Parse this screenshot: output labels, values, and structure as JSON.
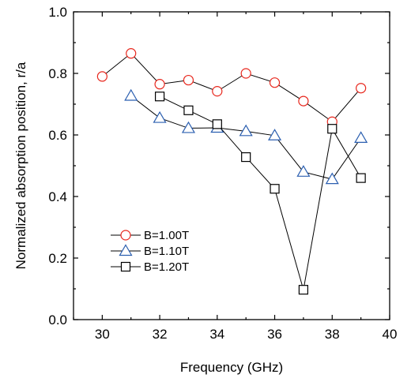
{
  "chart_data": {
    "type": "line",
    "title": "",
    "xlabel": "Frequency (GHz)",
    "ylabel": "Normalized absorption position, r/a",
    "xlim": [
      29,
      40
    ],
    "ylim": [
      0.0,
      1.0
    ],
    "xticks": [
      30,
      32,
      34,
      36,
      38,
      40
    ],
    "yticks": [
      0.0,
      0.2,
      0.4,
      0.6,
      0.8,
      1.0
    ],
    "ytick_labels": [
      "0.0",
      "0.2",
      "0.4",
      "0.6",
      "0.8",
      "1.0"
    ],
    "grid": false,
    "legend_position": "bottom-left",
    "series": [
      {
        "name": "B=1.00T",
        "marker": "circle",
        "color": "#e8271d",
        "x": [
          30,
          31,
          32,
          33,
          34,
          35,
          36,
          37,
          38,
          39
        ],
        "y": [
          0.79,
          0.865,
          0.765,
          0.778,
          0.742,
          0.8,
          0.77,
          0.71,
          0.643,
          0.752
        ]
      },
      {
        "name": "B=1.10T",
        "marker": "triangle",
        "color": "#2b5fb0",
        "x": [
          31,
          32,
          33,
          34,
          35,
          36,
          37,
          38,
          39
        ],
        "y": [
          0.727,
          0.655,
          0.622,
          0.623,
          0.612,
          0.598,
          0.48,
          0.456,
          0.59
        ]
      },
      {
        "name": "B=1.20T",
        "marker": "square",
        "color": "#000000",
        "x": [
          32,
          33,
          34,
          35,
          36,
          37,
          38,
          39
        ],
        "y": [
          0.725,
          0.68,
          0.635,
          0.528,
          0.425,
          0.097,
          0.62,
          0.46
        ]
      }
    ]
  }
}
